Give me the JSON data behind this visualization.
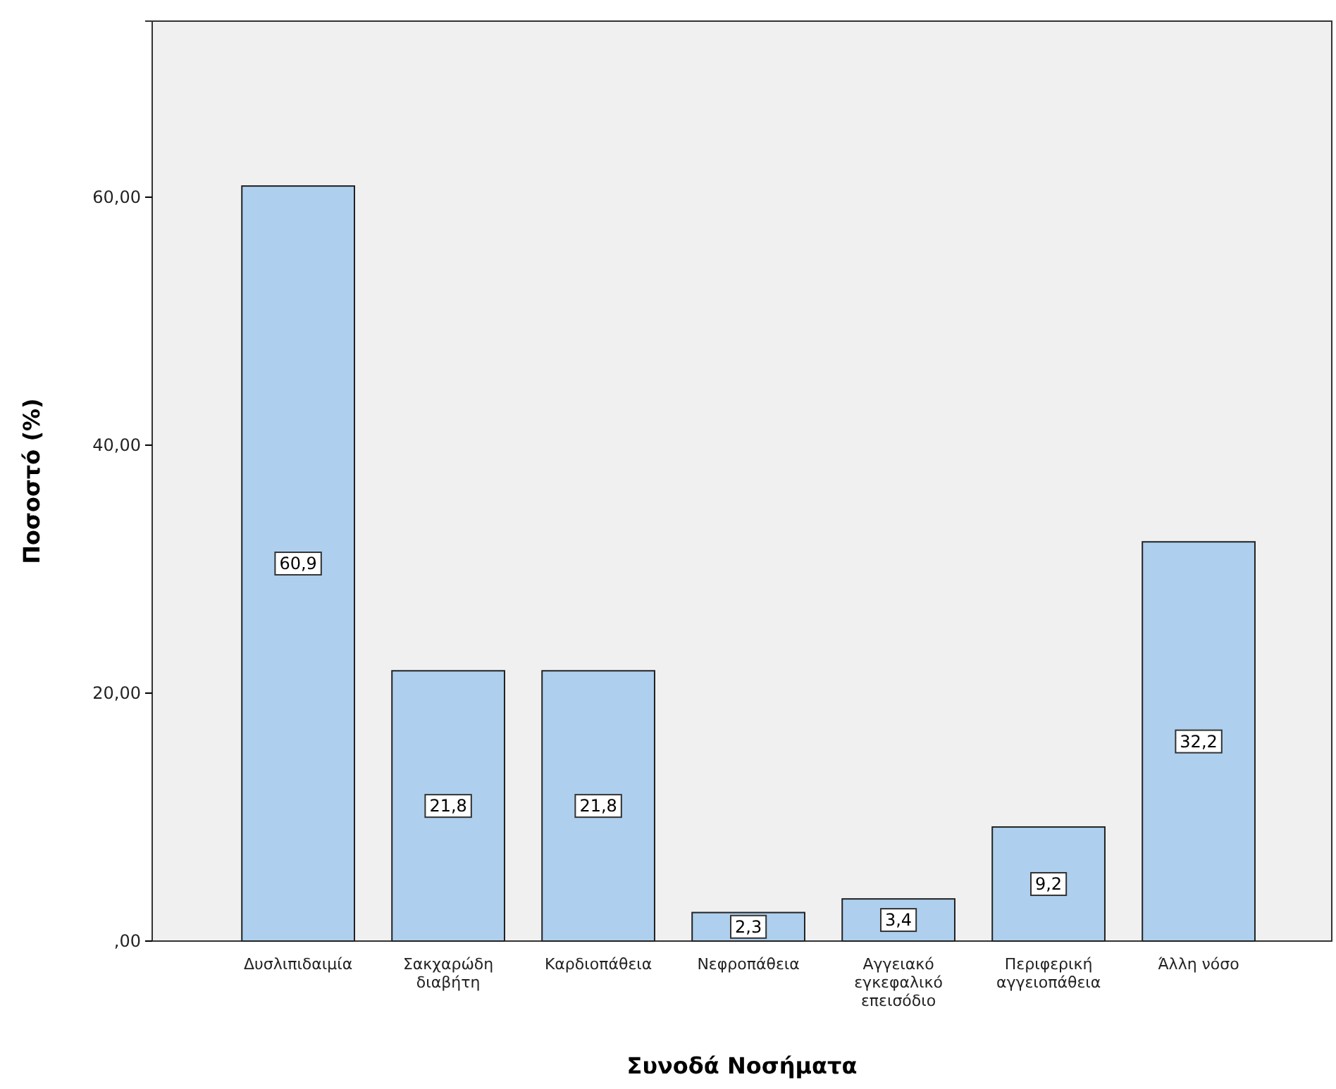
{
  "chart_data": {
    "type": "bar",
    "xlabel": "Συνοδά Νοσήματα",
    "ylabel": "Ποσοστό (%)",
    "categories": [
      "Δυσλιπιδαιμία",
      "Σακχαρώδη διαβήτη",
      "Καρδιοπάθεια",
      "Νεφροπάθεια",
      "Αγγειακό εγκεφαλικό επεισόδιο",
      "Περιφερική αγγειοπάθεια",
      "Άλλη νόσο"
    ],
    "values": [
      60.9,
      21.8,
      21.8,
      2.3,
      3.4,
      9.2,
      32.2
    ],
    "color": "#aed0ee",
    "ylim": [
      0,
      74.2
    ],
    "yticks": [
      {
        "value": 0,
        "label": ",00"
      },
      {
        "value": 20,
        "label": "20,00"
      },
      {
        "value": 40,
        "label": "40,00"
      },
      {
        "value": 60,
        "label": "60,00"
      }
    ],
    "grid": false,
    "value_labels": [
      "60,9",
      "21,8",
      "21,8",
      "2,3",
      "3,4",
      "9,2",
      "32,2"
    ]
  }
}
